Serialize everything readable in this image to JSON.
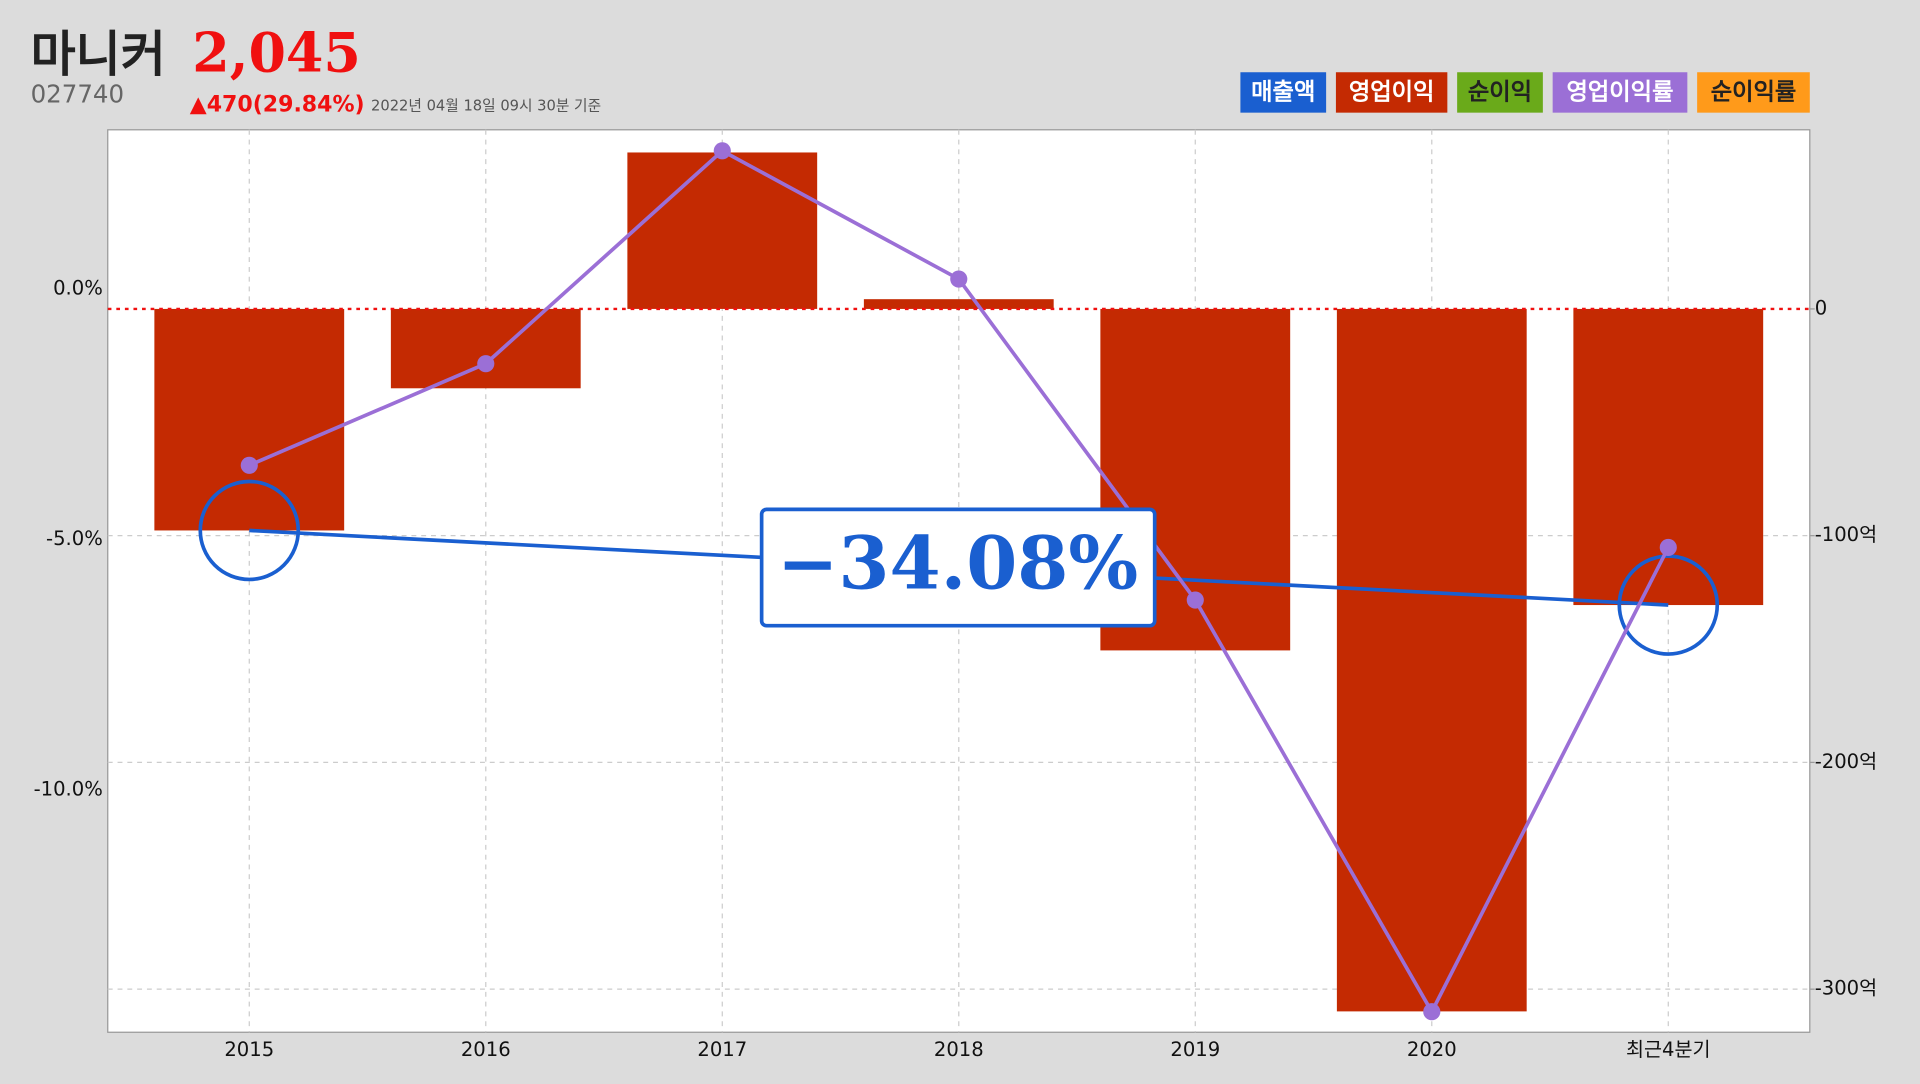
{
  "header": {
    "title": "마니커",
    "price": "2,045",
    "code": "027740",
    "change": "▲470(29.84%)",
    "timestamp": "2022년 04월 18일 09시 30분 기준"
  },
  "chart_data": {
    "type": "bar-line",
    "categories": [
      "2015",
      "2016",
      "2017",
      "2018",
      "2019",
      "2020",
      "최근4분기"
    ],
    "series": [
      {
        "name": "영업이익",
        "type": "bar",
        "axis": "y2",
        "color": "#c42a02",
        "values": [
          -97.7,
          -35,
          69,
          4.3,
          -150.6,
          -309.8,
          -130.6
        ]
      },
      {
        "name": "영업이익률",
        "type": "line",
        "color": "#9b6fd6",
        "values": [
          -3.52,
          -1.49,
          2.76,
          0.2,
          -6.21,
          -14.43,
          -5.16
        ]
      }
    ],
    "other_legend_items": [
      {
        "name": "매출액",
        "color": "#1a5fd0"
      },
      {
        "name": "순이익",
        "color": "#6aaa1a"
      },
      {
        "name": "순이익률",
        "color": "#ff9a1a"
      }
    ],
    "ylim": [
      -14.84,
      3.18
    ],
    "yticks": [
      {
        "value": 0,
        "label": "0.0%"
      },
      {
        "value": -5,
        "label": "-5.0%"
      },
      {
        "value": -10,
        "label": "-10.0%"
      }
    ],
    "y2lim": [
      -319,
      79
    ],
    "y2ticks": [
      0,
      {
        "value": -100,
        "label": "-100억"
      },
      {
        "value": -200,
        "label": "-200억"
      },
      {
        "value": -300,
        "label": "-300억"
      }
    ],
    "grid": true,
    "annotation": {
      "text": "−34.08%",
      "color": "#1a5fd0"
    }
  }
}
